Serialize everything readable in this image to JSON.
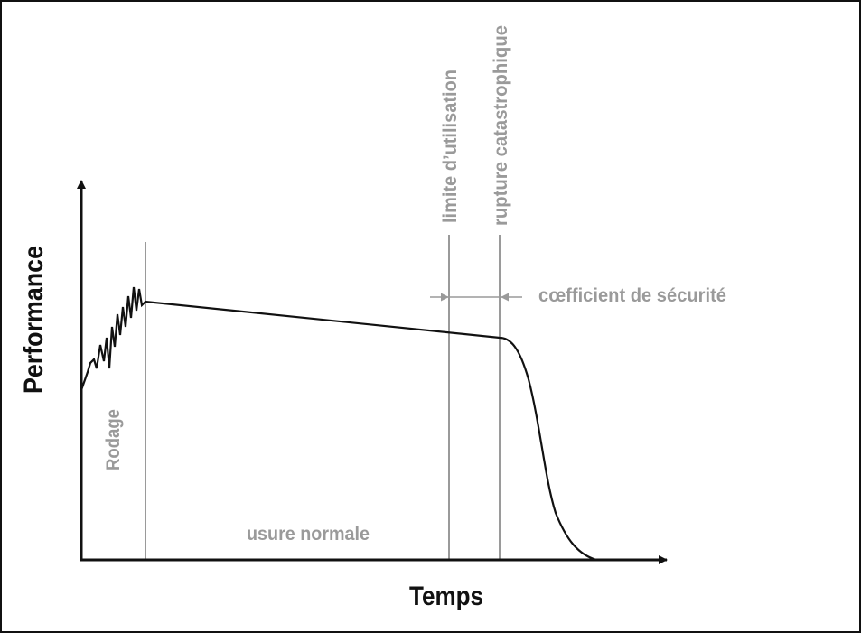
{
  "diagram": {
    "x_axis_label": "Temps",
    "y_axis_label": "Performance",
    "labels": {
      "break_in": "Rodage",
      "normal_wear": "usure normale",
      "usage_limit": "limite d’utilisation",
      "catastrophic_failure": "rupture catastrophique",
      "safety_factor": "cœfficient de sécurité"
    },
    "colors": {
      "axes": "#111111",
      "curve": "#111111",
      "markers": "#9a9a9a",
      "background": "#ffffff"
    }
  }
}
